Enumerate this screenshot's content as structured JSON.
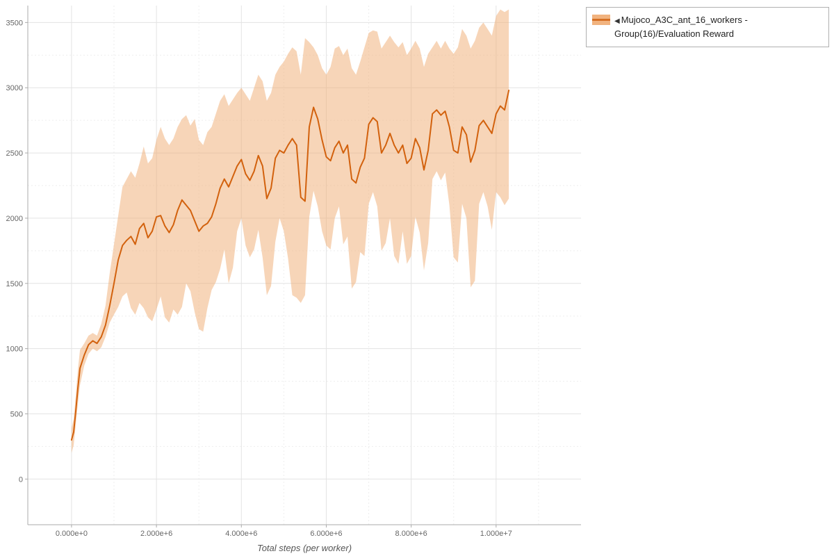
{
  "chart_data": {
    "type": "line",
    "title": "",
    "xlabel": "Total steps (per worker)",
    "ylabel": "",
    "x_unit": 1000000,
    "xlim": [
      -1030000,
      12000000
    ],
    "ylim": [
      -350,
      3630
    ],
    "x_tick_values": [
      0,
      2000000,
      4000000,
      6000000,
      8000000,
      10000000
    ],
    "x_tick_labels": [
      "0.000e+0",
      "2.000e+6",
      "4.000e+6",
      "6.000e+6",
      "8.000e+6",
      "1.000e+7"
    ],
    "y_ticks": [
      0,
      500,
      1000,
      1500,
      2000,
      2500,
      3000,
      3500
    ],
    "grid": true,
    "colors": {
      "line": "#d2610d",
      "band": "#f0ab72",
      "grid_major": "#e3e3e3",
      "grid_minor": "#eeeeee",
      "axis": "#ababab",
      "tick_text": "#666666"
    },
    "legend": {
      "position": "top-right",
      "collapse_glyph": "◀",
      "entries": [
        {
          "label": "Mujoco_A3C_ant_16_workers - Group(16)/Evaluation Reward",
          "line_color": "#d2610d",
          "band_color": "#f0ab72"
        }
      ]
    },
    "series": [
      {
        "name": "Mujoco_A3C_ant_16_workers - Group(16)/Evaluation Reward",
        "line_color": "#d2610d",
        "band_color": "#f0ab72",
        "band_opacity": 0.5,
        "x": [
          0,
          0.05,
          0.1,
          0.15,
          0.2,
          0.3,
          0.4,
          0.5,
          0.6,
          0.7,
          0.8,
          0.9,
          1.0,
          1.1,
          1.2,
          1.3,
          1.4,
          1.5,
          1.6,
          1.7,
          1.8,
          1.9,
          2.0,
          2.1,
          2.2,
          2.3,
          2.4,
          2.5,
          2.6,
          2.7,
          2.8,
          2.9,
          3.0,
          3.1,
          3.2,
          3.3,
          3.4,
          3.5,
          3.6,
          3.7,
          3.8,
          3.9,
          4.0,
          4.1,
          4.2,
          4.3,
          4.4,
          4.5,
          4.6,
          4.7,
          4.8,
          4.9,
          5.0,
          5.1,
          5.2,
          5.3,
          5.4,
          5.5,
          5.6,
          5.7,
          5.8,
          5.9,
          6.0,
          6.1,
          6.2,
          6.3,
          6.4,
          6.5,
          6.6,
          6.7,
          6.8,
          6.9,
          7.0,
          7.1,
          7.2,
          7.3,
          7.4,
          7.5,
          7.6,
          7.7,
          7.8,
          7.9,
          8.0,
          8.1,
          8.2,
          8.3,
          8.4,
          8.5,
          8.6,
          8.7,
          8.8,
          8.9,
          9.0,
          9.1,
          9.2,
          9.3,
          9.4,
          9.5,
          9.6,
          9.7,
          9.8,
          9.9,
          10.0,
          10.1,
          10.2,
          10.3
        ],
        "mean": [
          300,
          360,
          520,
          700,
          850,
          950,
          1030,
          1060,
          1040,
          1090,
          1180,
          1330,
          1500,
          1680,
          1790,
          1830,
          1860,
          1800,
          1920,
          1960,
          1850,
          1900,
          2010,
          2020,
          1940,
          1890,
          1950,
          2060,
          2140,
          2100,
          2060,
          1980,
          1900,
          1940,
          1960,
          2010,
          2110,
          2230,
          2300,
          2240,
          2320,
          2400,
          2450,
          2340,
          2290,
          2360,
          2480,
          2400,
          2150,
          2230,
          2460,
          2520,
          2500,
          2560,
          2610,
          2560,
          2160,
          2130,
          2700,
          2850,
          2760,
          2600,
          2470,
          2440,
          2540,
          2590,
          2500,
          2560,
          2300,
          2270,
          2390,
          2460,
          2720,
          2770,
          2740,
          2500,
          2560,
          2650,
          2560,
          2500,
          2560,
          2420,
          2460,
          2610,
          2540,
          2370,
          2520,
          2800,
          2830,
          2790,
          2820,
          2700,
          2520,
          2500,
          2700,
          2640,
          2430,
          2520,
          2710,
          2750,
          2700,
          2650,
          2800,
          2860,
          2830,
          2980
        ],
        "lower": [
          200,
          260,
          420,
          580,
          720,
          870,
          960,
          1000,
          980,
          1010,
          1090,
          1200,
          1260,
          1320,
          1400,
          1430,
          1310,
          1260,
          1350,
          1310,
          1240,
          1210,
          1300,
          1400,
          1240,
          1200,
          1300,
          1260,
          1320,
          1500,
          1440,
          1280,
          1150,
          1130,
          1310,
          1450,
          1510,
          1610,
          1760,
          1500,
          1620,
          1900,
          2000,
          1790,
          1700,
          1760,
          1910,
          1700,
          1410,
          1480,
          1820,
          2000,
          1900,
          1690,
          1410,
          1390,
          1350,
          1410,
          2010,
          2210,
          2090,
          1900,
          1790,
          1760,
          2000,
          2090,
          1800,
          1860,
          1460,
          1510,
          1740,
          1710,
          2110,
          2200,
          2090,
          1750,
          1810,
          2000,
          1710,
          1650,
          1900,
          1650,
          1710,
          2010,
          1890,
          1600,
          1810,
          2300,
          2360,
          2290,
          2350,
          2100,
          1700,
          1660,
          2110,
          2000,
          1470,
          1520,
          2110,
          2200,
          2090,
          1910,
          2200,
          2160,
          2100,
          2150
        ],
        "upper": [
          390,
          460,
          640,
          840,
          990,
          1040,
          1100,
          1120,
          1100,
          1190,
          1330,
          1580,
          1800,
          2020,
          2240,
          2300,
          2360,
          2310,
          2420,
          2550,
          2420,
          2460,
          2600,
          2700,
          2610,
          2560,
          2610,
          2700,
          2760,
          2790,
          2710,
          2760,
          2600,
          2560,
          2660,
          2700,
          2800,
          2900,
          2950,
          2860,
          2910,
          2960,
          3000,
          2950,
          2900,
          3000,
          3100,
          3050,
          2900,
          2960,
          3100,
          3160,
          3200,
          3260,
          3310,
          3280,
          3100,
          3380,
          3350,
          3310,
          3250,
          3150,
          3100,
          3160,
          3300,
          3320,
          3250,
          3300,
          3150,
          3100,
          3200,
          3310,
          3420,
          3440,
          3430,
          3300,
          3350,
          3400,
          3350,
          3310,
          3350,
          3250,
          3300,
          3360,
          3300,
          3160,
          3260,
          3310,
          3360,
          3300,
          3360,
          3300,
          3260,
          3310,
          3450,
          3400,
          3300,
          3360,
          3460,
          3500,
          3450,
          3400,
          3550,
          3600,
          3580,
          3600
        ]
      }
    ]
  }
}
